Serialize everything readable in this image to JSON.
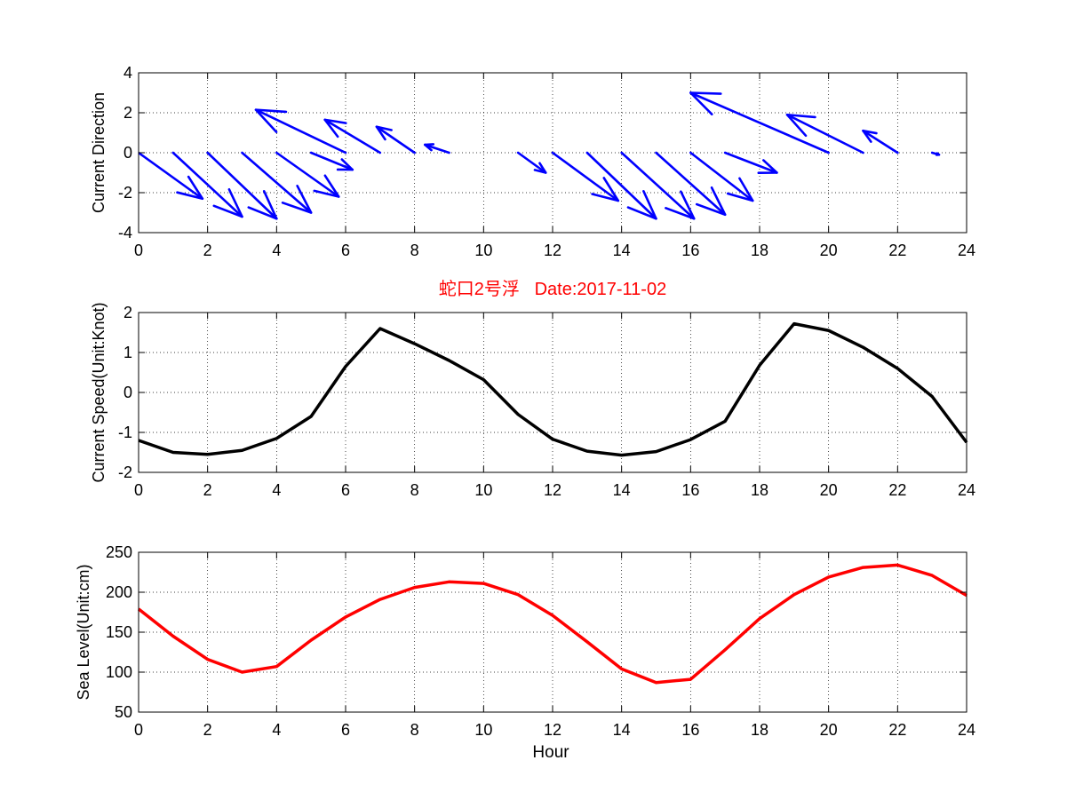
{
  "figure": {
    "title": "蛇口2号浮   Date:2017-11-02",
    "title_color": "#ff0000",
    "xlabel": "Hour"
  },
  "chart_data": [
    {
      "type": "quiver",
      "ylabel": "Current Direction",
      "xlim": [
        0,
        24
      ],
      "ylim": [
        -4,
        4
      ],
      "xticks": [
        0,
        2,
        4,
        6,
        8,
        10,
        12,
        14,
        16,
        18,
        20,
        22,
        24
      ],
      "yticks": [
        -4,
        -2,
        0,
        2,
        4
      ],
      "grid": true,
      "color": "#0000ff",
      "arrows": [
        {
          "x": 0,
          "u": 1.85,
          "v": -2.3
        },
        {
          "x": 1,
          "u": 2.0,
          "v": -3.2
        },
        {
          "x": 2,
          "u": 2.0,
          "v": -3.3
        },
        {
          "x": 3,
          "u": 2.0,
          "v": -3.0
        },
        {
          "x": 4,
          "u": 1.8,
          "v": -2.2
        },
        {
          "x": 5,
          "u": 1.2,
          "v": -0.85
        },
        {
          "x": 6,
          "u": -2.6,
          "v": 2.15
        },
        {
          "x": 7,
          "u": -1.6,
          "v": 1.65
        },
        {
          "x": 8,
          "u": -1.1,
          "v": 1.3
        },
        {
          "x": 9,
          "u": -0.7,
          "v": 0.4
        },
        {
          "x": 11,
          "u": 0.8,
          "v": -1.0
        },
        {
          "x": 12,
          "u": 1.9,
          "v": -2.4
        },
        {
          "x": 13,
          "u": 2.0,
          "v": -3.3
        },
        {
          "x": 14,
          "u": 2.1,
          "v": -3.3
        },
        {
          "x": 15,
          "u": 2.0,
          "v": -3.1
        },
        {
          "x": 16,
          "u": 1.8,
          "v": -2.4
        },
        {
          "x": 17,
          "u": 1.5,
          "v": -1.0
        },
        {
          "x": 20,
          "u": -4.0,
          "v": 3.0
        },
        {
          "x": 21,
          "u": -2.2,
          "v": 1.9
        },
        {
          "x": 22,
          "u": -1.0,
          "v": 1.1
        },
        {
          "x": 23,
          "u": 0.2,
          "v": -0.1
        }
      ]
    },
    {
      "type": "line",
      "ylabel": "Current Speed(Unit:Knot)",
      "xlim": [
        0,
        24
      ],
      "ylim": [
        -2,
        2
      ],
      "xticks": [
        0,
        2,
        4,
        6,
        8,
        10,
        12,
        14,
        16,
        18,
        20,
        22,
        24
      ],
      "yticks": [
        -2,
        -1,
        0,
        1,
        2
      ],
      "grid": true,
      "color": "#000000",
      "x": [
        0,
        1,
        2,
        3,
        4,
        5,
        6,
        7,
        8,
        9,
        10,
        11,
        12,
        13,
        14,
        15,
        16,
        17,
        18,
        19,
        20,
        21,
        22,
        23,
        24
      ],
      "y": [
        -1.2,
        -1.5,
        -1.55,
        -1.45,
        -1.15,
        -0.6,
        0.65,
        1.6,
        1.22,
        0.8,
        0.32,
        -0.55,
        -1.17,
        -1.47,
        -1.57,
        -1.48,
        -1.18,
        -0.72,
        0.68,
        1.72,
        1.55,
        1.13,
        0.6,
        -0.1,
        -1.25
      ]
    },
    {
      "type": "line",
      "ylabel": "Sea Level(Unit:cm)",
      "xlim": [
        0,
        24
      ],
      "ylim": [
        50,
        250
      ],
      "xticks": [
        0,
        2,
        4,
        6,
        8,
        10,
        12,
        14,
        16,
        18,
        20,
        22,
        24
      ],
      "yticks": [
        50,
        100,
        150,
        200,
        250
      ],
      "grid": true,
      "color": "#ff0000",
      "x": [
        0,
        1,
        2,
        3,
        4,
        5,
        6,
        7,
        8,
        9,
        10,
        11,
        12,
        13,
        14,
        15,
        16,
        17,
        18,
        19,
        20,
        21,
        22,
        23,
        24
      ],
      "y": [
        179,
        145,
        116,
        100,
        107,
        140,
        169,
        191,
        206,
        213,
        211,
        197,
        171,
        138,
        104,
        87,
        91,
        128,
        167,
        197,
        219,
        231,
        234,
        221,
        196
      ]
    }
  ]
}
